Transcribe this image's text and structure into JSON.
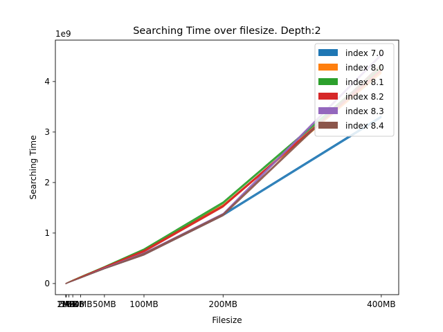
{
  "chart_data": {
    "type": "area",
    "title": "Searching Time over filesize. Depth:2",
    "xlabel": "Filesize",
    "ylabel": "Searching Time",
    "y_offset_text": "1e9",
    "x": [
      1,
      2,
      5,
      10,
      20,
      50,
      100,
      200,
      400
    ],
    "xtick_values": [
      1,
      2,
      5,
      10,
      20,
      50,
      100,
      200,
      400
    ],
    "xtick_labels": [
      "1MB",
      "2MB",
      "5MB",
      "10MB",
      "20MB",
      "50MB",
      "100MB",
      "200MB",
      "400MB"
    ],
    "ytick_values": [
      0,
      1,
      2,
      3,
      4
    ],
    "ytick_labels": [
      "0",
      "1",
      "2",
      "3",
      "4"
    ],
    "xlim": [
      -12,
      422
    ],
    "ylim": [
      -0.22,
      4.82
    ],
    "grid": false,
    "legend_position": "top-right",
    "series": [
      {
        "name": "index 7.0",
        "color": "#1f77b4",
        "values": [
          0.005,
          0.01,
          0.03,
          0.06,
          0.12,
          0.3,
          0.6,
          1.38,
          3.32
        ]
      },
      {
        "name": "index 8.0",
        "color": "#ff7f0e",
        "values": [
          0.006,
          0.012,
          0.034,
          0.068,
          0.135,
          0.33,
          0.67,
          1.56,
          4.2
        ]
      },
      {
        "name": "index 8.1",
        "color": "#2ca02c",
        "values": [
          0.006,
          0.012,
          0.035,
          0.07,
          0.14,
          0.34,
          0.69,
          1.62,
          4.3
        ]
      },
      {
        "name": "index 8.2",
        "color": "#d62728",
        "values": [
          0.006,
          0.012,
          0.034,
          0.068,
          0.135,
          0.33,
          0.66,
          1.55,
          4.25
        ]
      },
      {
        "name": "index 8.3",
        "color": "#9467bd",
        "values": [
          0.005,
          0.011,
          0.03,
          0.06,
          0.12,
          0.31,
          0.61,
          1.39,
          4.55
        ]
      },
      {
        "name": "index 8.4",
        "color": "#8c564b",
        "values": [
          0.005,
          0.011,
          0.03,
          0.06,
          0.12,
          0.3,
          0.6,
          1.38,
          4.35
        ]
      }
    ]
  }
}
